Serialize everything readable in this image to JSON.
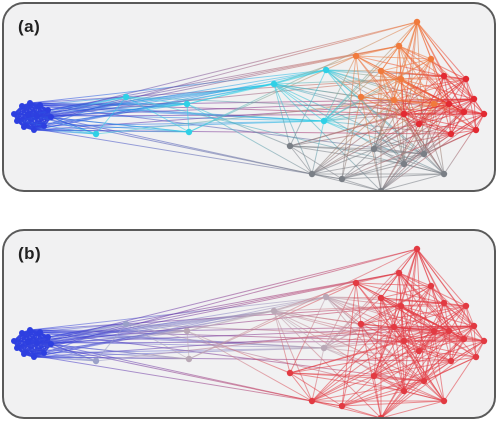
{
  "panels": [
    {
      "id": "a",
      "label": "(a)"
    },
    {
      "id": "b",
      "label": "(b)"
    }
  ]
}
